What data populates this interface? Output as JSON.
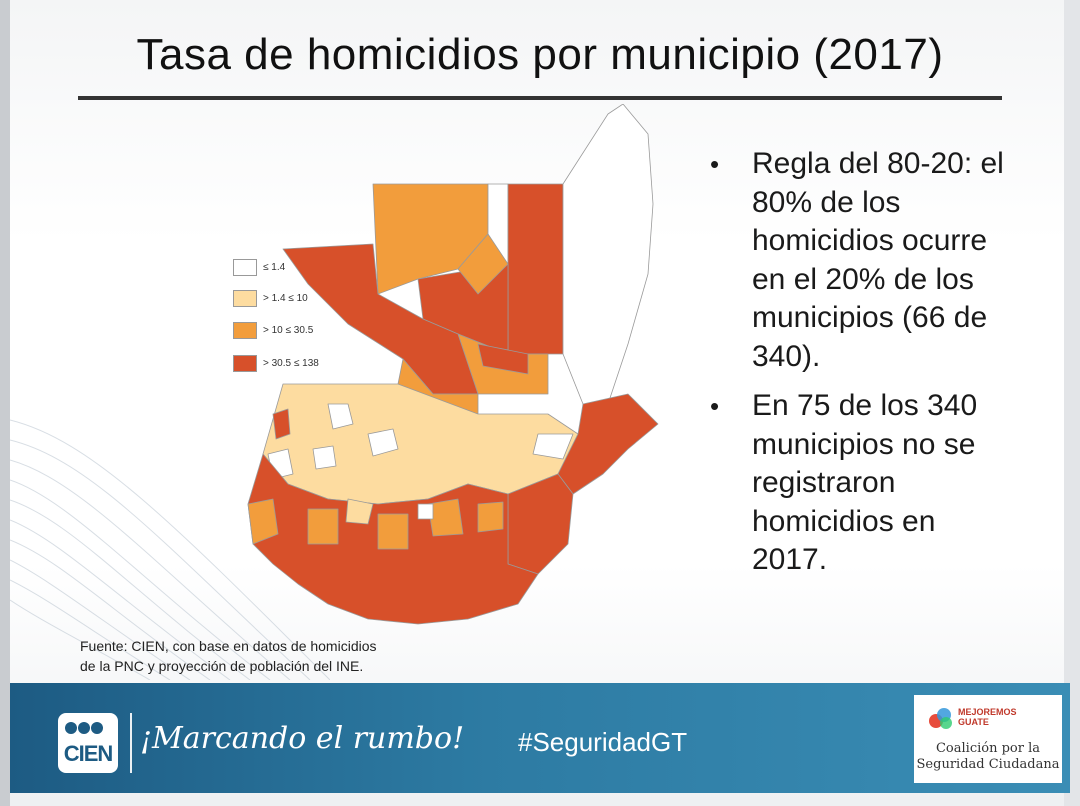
{
  "title": "Tasa de homicidios por municipio (2017)",
  "legend": [
    {
      "label": "≤ 1.4",
      "color": "#ffffff"
    },
    {
      "label": "> 1.4  ≤ 10",
      "color": "#fddca0"
    },
    {
      "label": "> 10  ≤ 30.5",
      "color": "#f29d3c"
    },
    {
      "label": "> 30.5 ≤ 138",
      "color": "#d7502a"
    }
  ],
  "bullets": [
    "Regla del 80-20: el 80% de los homicidios ocurre en el 20% de los municipios (66 de 340).",
    "En 75 de los 340 municipios no se registraron homicidios en 2017."
  ],
  "source_lines": [
    "Fuente: CIEN, con base en datos de homicidios",
    "de la PNC y proyección de población del INE."
  ],
  "footer": {
    "logo_text": "CIEN",
    "slogan": "¡Marcando el rumbo!",
    "hashtag": "#SeguridadGT",
    "partner_brand_line1": "MEJOREMOS",
    "partner_brand_line2": "GUATE",
    "partner_line1": "Coalición por la",
    "partner_line2": "Seguridad Ciudadana"
  }
}
